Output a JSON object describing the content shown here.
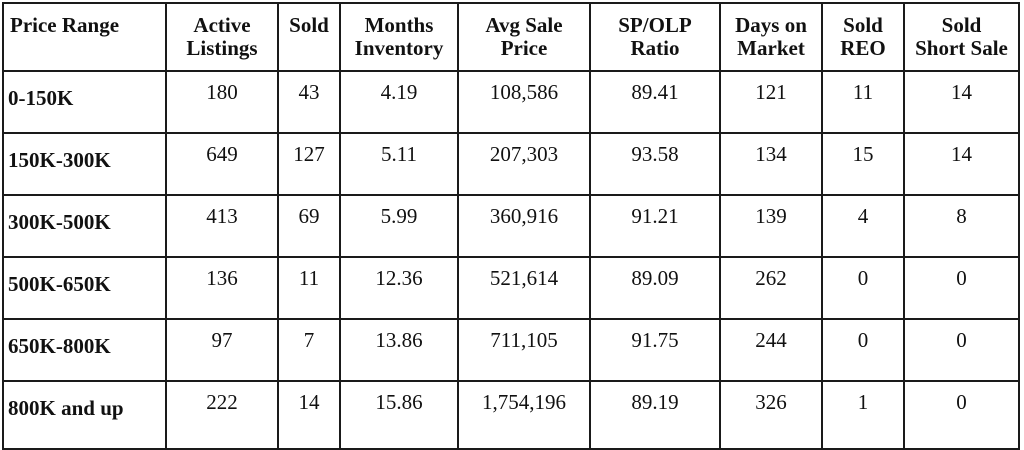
{
  "headers": [
    {
      "line1": "Price Range",
      "line2": ""
    },
    {
      "line1": "Active",
      "line2": "Listings"
    },
    {
      "line1": "Sold",
      "line2": ""
    },
    {
      "line1": "Months",
      "line2": "Inventory"
    },
    {
      "line1": "Avg Sale",
      "line2": "Price"
    },
    {
      "line1": "SP/OLP",
      "line2": "Ratio"
    },
    {
      "line1": "Days on",
      "line2": "Market"
    },
    {
      "line1": "Sold",
      "line2": "REO"
    },
    {
      "line1": "Sold",
      "line2": "Short Sale"
    }
  ],
  "rows": [
    [
      "0-150K",
      "180",
      "43",
      "4.19",
      "108,586",
      "89.41",
      "121",
      "11",
      "14"
    ],
    [
      "150K-300K",
      "649",
      "127",
      "5.11",
      "207,303",
      "93.58",
      "134",
      "15",
      "14"
    ],
    [
      "300K-500K",
      "413",
      "69",
      "5.99",
      "360,916",
      "91.21",
      "139",
      "4",
      "8"
    ],
    [
      "500K-650K",
      "136",
      "11",
      "12.36",
      "521,614",
      "89.09",
      "262",
      "0",
      "0"
    ],
    [
      "650K-800K",
      "97",
      "7",
      "13.86",
      "711,105",
      "91.75",
      "244",
      "0",
      "0"
    ],
    [
      "800K and up",
      "222",
      "14",
      "15.86",
      "1,754,196",
      "89.19",
      "326",
      "1",
      "0"
    ]
  ]
}
